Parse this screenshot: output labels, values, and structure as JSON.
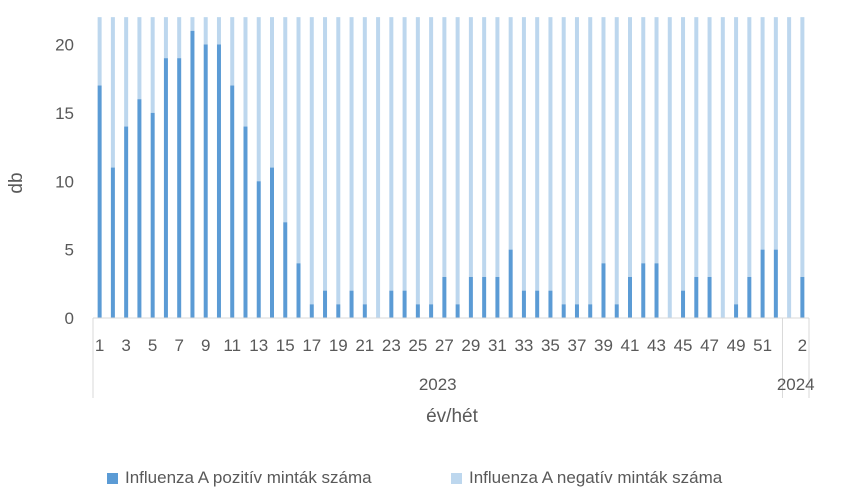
{
  "chart_data": {
    "type": "bar",
    "stacked": true,
    "ylabel": "db",
    "xlabel": "év/hét",
    "ylim": [
      0,
      22
    ],
    "yticks": [
      0,
      5,
      10,
      15,
      20
    ],
    "grid": false,
    "legend_position": "bottom",
    "week_labels": [
      1,
      2,
      3,
      4,
      5,
      6,
      7,
      8,
      9,
      10,
      11,
      12,
      13,
      14,
      15,
      16,
      17,
      18,
      19,
      20,
      21,
      22,
      23,
      24,
      25,
      26,
      27,
      28,
      29,
      30,
      31,
      32,
      33,
      34,
      35,
      36,
      37,
      38,
      39,
      40,
      41,
      42,
      43,
      44,
      45,
      46,
      47,
      48,
      49,
      50,
      51,
      52,
      1,
      2
    ],
    "visible_tick_labels": [
      "1",
      "3",
      "5",
      "7",
      "9",
      "11",
      "13",
      "15",
      "17",
      "19",
      "21",
      "23",
      "25",
      "27",
      "29",
      "31",
      "33",
      "35",
      "37",
      "39",
      "41",
      "43",
      "45",
      "47",
      "49",
      "51",
      "2"
    ],
    "year_groups": [
      {
        "label": "2023",
        "count": 52
      },
      {
        "label": "2024",
        "count": 2
      }
    ],
    "series": [
      {
        "name": "Influenza A pozitív minták száma",
        "color": "#5b9bd5",
        "values": [
          17,
          11,
          14,
          16,
          15,
          19,
          19,
          21,
          20,
          20,
          17,
          14,
          10,
          11,
          7,
          4,
          1,
          2,
          1,
          2,
          1,
          0,
          2,
          2,
          1,
          1,
          3,
          1,
          3,
          3,
          3,
          5,
          2,
          2,
          2,
          1,
          1,
          1,
          4,
          1,
          3,
          4,
          4,
          0,
          2,
          3,
          3,
          0,
          1,
          3,
          5,
          5,
          0,
          3
        ]
      },
      {
        "name": "Influenza A negatív minták száma",
        "color": "#bdd7ee",
        "values": [
          5,
          11,
          8,
          6,
          7,
          3,
          3,
          1,
          2,
          2,
          5,
          8,
          12,
          11,
          15,
          18,
          21,
          20,
          21,
          20,
          21,
          22,
          20,
          20,
          21,
          21,
          19,
          21,
          19,
          19,
          19,
          17,
          20,
          20,
          20,
          21,
          21,
          21,
          18,
          21,
          19,
          18,
          18,
          22,
          20,
          19,
          19,
          22,
          21,
          19,
          17,
          17,
          22,
          19
        ]
      }
    ]
  }
}
